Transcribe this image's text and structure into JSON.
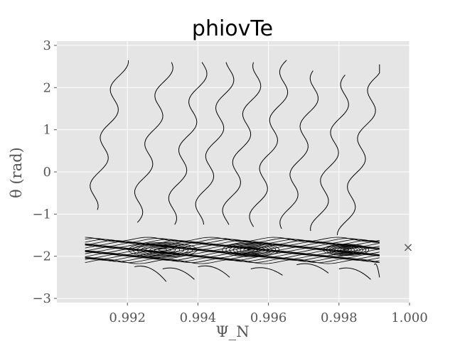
{
  "chart_data": {
    "type": "contour",
    "title": "phiovTe",
    "xlabel": "Ψ_N",
    "ylabel": "θ (rad)",
    "xlim": [
      0.99,
      1.0
    ],
    "ylim": [
      -3.1,
      3.1
    ],
    "x_ticks": [
      0.992,
      0.994,
      0.996,
      0.998,
      1.0
    ],
    "x_tick_labels": [
      "0.992",
      "0.994",
      "0.996",
      "0.998",
      "1.000"
    ],
    "y_ticks": [
      -3,
      -2,
      -1,
      0,
      1,
      2,
      3
    ],
    "y_tick_labels": [
      "−3",
      "−2",
      "−1",
      "0",
      "1",
      "2",
      "3"
    ],
    "grid": true,
    "style": "ggplot",
    "contour_color": "#000000",
    "band_center_theta": -1.85,
    "marker": {
      "symbol": "×",
      "x": 1.0,
      "y": -1.8,
      "color": "#E24A33"
    },
    "upper_contours": [
      {
        "x0": 0.9912,
        "theta_top": 2.65,
        "theta_bottom": -0.9
      },
      {
        "x0": 0.9925,
        "theta_top": 2.6,
        "theta_bottom": -1.2
      },
      {
        "x0": 0.9935,
        "theta_top": 2.6,
        "theta_bottom": -1.25
      },
      {
        "x0": 0.9943,
        "theta_top": 2.6,
        "theta_bottom": -1.25
      },
      {
        "x0": 0.9951,
        "theta_top": 2.6,
        "theta_bottom": -1.25
      },
      {
        "x0": 0.9959,
        "theta_top": 2.65,
        "theta_bottom": -1.3
      },
      {
        "x0": 0.9968,
        "theta_top": 2.4,
        "theta_bottom": -1.35
      },
      {
        "x0": 0.9977,
        "theta_top": 2.3,
        "theta_bottom": -1.4
      },
      {
        "x0": 0.9985,
        "theta_top": 2.55,
        "theta_bottom": -1.5
      }
    ]
  }
}
